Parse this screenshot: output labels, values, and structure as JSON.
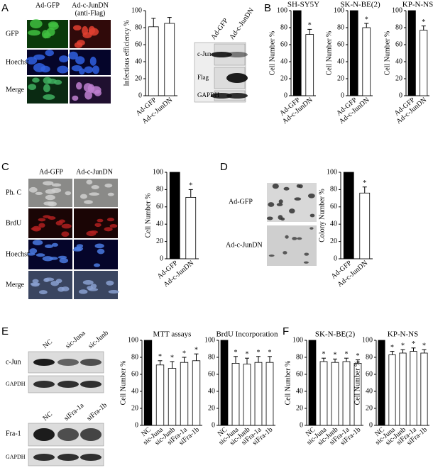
{
  "labels": {
    "panels": [
      "A",
      "B",
      "C",
      "D",
      "E",
      "F"
    ],
    "a_columns": [
      "Ad-GFP",
      "Ad-c-JunDN",
      "(anti-Flag)"
    ],
    "a_rows": [
      "GFP",
      "Hoechst",
      "Merge"
    ],
    "a_blot_columns": [
      "Ad-GFP",
      "Ad-c-JunDN"
    ],
    "a_blot_rows": [
      "c-Jun",
      "Flag",
      "GAPDH"
    ],
    "c_columns": [
      "Ad-GFP",
      "Ad-c-JunDN"
    ],
    "c_rows": [
      "Ph. C",
      "BrdU",
      "Hoechst",
      "Merge"
    ],
    "d_rows": [
      "Ad-GFP",
      "Ad-c-JunDN"
    ],
    "e_blot1_columns": [
      "NC",
      "sic-Juna",
      "sic-Junb"
    ],
    "e_blot1_rows": [
      "c-Jun",
      "GAPDH"
    ],
    "e_blot2_columns": [
      "NC",
      "siFra-1a",
      "siFra-1b"
    ],
    "e_blot2_rows": [
      "Fra-1",
      "GAPDH"
    ]
  },
  "chart_data": [
    {
      "type": "bar",
      "y_label": "Infectious efficiency %",
      "categories": [
        "Ad-GFP",
        "Ad-c-JunDN"
      ],
      "values": [
        81,
        85
      ],
      "errors": [
        10,
        7
      ],
      "colors": [
        "#ffffff",
        "#ffffff"
      ],
      "ylim": [
        0,
        100
      ],
      "yticks": [
        0,
        20,
        40,
        60,
        80,
        100
      ]
    },
    {
      "type": "bar",
      "title": "SH-SY5Y",
      "y_label": "Cell Number %",
      "categories": [
        "Ad-GFP",
        "Ad-c-JunDN"
      ],
      "values": [
        100,
        72
      ],
      "errors": [
        null,
        6
      ],
      "significance": [
        null,
        "*"
      ],
      "colors": [
        "#000000",
        "#ffffff"
      ],
      "ylim": [
        0,
        100
      ],
      "yticks": [
        0,
        20,
        40,
        60,
        80,
        100
      ]
    },
    {
      "type": "bar",
      "title": "SK-N-BE(2)",
      "y_label": "Cell Number %",
      "categories": [
        "Ad-GFP",
        "Ad-c-JunDN"
      ],
      "values": [
        100,
        80
      ],
      "errors": [
        null,
        5
      ],
      "significance": [
        null,
        "*"
      ],
      "colors": [
        "#000000",
        "#ffffff"
      ],
      "ylim": [
        0,
        100
      ],
      "yticks": [
        0,
        20,
        40,
        60,
        80,
        100
      ]
    },
    {
      "type": "bar",
      "title": "KP-N-NS",
      "y_label": "Cell Number %",
      "categories": [
        "Ad-GFP",
        "Ad-c-JunDN"
      ],
      "values": [
        100,
        77
      ],
      "errors": [
        null,
        5
      ],
      "significance": [
        null,
        "*"
      ],
      "colors": [
        "#000000",
        "#ffffff"
      ],
      "ylim": [
        0,
        100
      ],
      "yticks": [
        0,
        20,
        40,
        60,
        80,
        100
      ]
    },
    {
      "type": "bar",
      "y_label": "Cell Number %",
      "categories": [
        "Ad-GFP",
        "Ad-c-JunDN"
      ],
      "values": [
        100,
        71
      ],
      "errors": [
        null,
        9
      ],
      "significance": [
        null,
        "*"
      ],
      "colors": [
        "#000000",
        "#ffffff"
      ],
      "ylim": [
        0,
        100
      ],
      "yticks": [
        0,
        20,
        40,
        60,
        80,
        100
      ]
    },
    {
      "type": "bar",
      "y_label": "Colony Number %",
      "categories": [
        "Ad-GFP",
        "Ad-c-JunDN"
      ],
      "values": [
        100,
        76
      ],
      "errors": [
        null,
        7
      ],
      "significance": [
        null,
        "*"
      ],
      "colors": [
        "#000000",
        "#ffffff"
      ],
      "ylim": [
        0,
        100
      ],
      "yticks": [
        0,
        20,
        40,
        60,
        80,
        100
      ]
    },
    {
      "type": "bar",
      "title": "MTT assays",
      "y_label": "Cell Number %",
      "categories": [
        "NC",
        "sic-Juna",
        "sic-Junb",
        "siFra-1a",
        "siFra-1b"
      ],
      "values": [
        100,
        71,
        67,
        74,
        76
      ],
      "errors": [
        null,
        5,
        8,
        6,
        8
      ],
      "significance": [
        null,
        "*",
        "*",
        "*",
        "*"
      ],
      "colors": [
        "#000000",
        "#ffffff",
        "#ffffff",
        "#ffffff",
        "#ffffff"
      ],
      "ylim": [
        0,
        100
      ],
      "yticks": [
        0,
        20,
        40,
        60,
        80,
        100
      ]
    },
    {
      "type": "bar",
      "title": "BrdU Incorporation",
      "categories": [
        "NC",
        "sic-Juna",
        "sic-Junb",
        "siFra-1a",
        "siFra-1b"
      ],
      "values": [
        100,
        73,
        72,
        74,
        74
      ],
      "errors": [
        null,
        8,
        7,
        7,
        7
      ],
      "significance": [
        null,
        "*",
        "*",
        "*",
        "*"
      ],
      "colors": [
        "#000000",
        "#ffffff",
        "#ffffff",
        "#ffffff",
        "#ffffff"
      ],
      "ylim": [
        0,
        100
      ],
      "yticks": [
        0,
        20,
        40,
        60,
        80,
        100
      ]
    },
    {
      "type": "bar",
      "title": "SK-N-BE(2)",
      "y_label": "Cell Number %",
      "categories": [
        "NC",
        "sic-Juna",
        "sic-Junb",
        "siFra-1a",
        "siFra-1b"
      ],
      "values": [
        100,
        75,
        74,
        75,
        73
      ],
      "errors": [
        null,
        4,
        4,
        4,
        4
      ],
      "significance": [
        null,
        "*",
        "*",
        "*",
        "*"
      ],
      "colors": [
        "#000000",
        "#ffffff",
        "#ffffff",
        "#ffffff",
        "#ffffff"
      ],
      "ylim": [
        0,
        100
      ],
      "yticks": [
        0,
        20,
        40,
        60,
        80,
        100
      ]
    },
    {
      "type": "bar",
      "title": "KP-N-NS",
      "y_label": "Cell Number %",
      "categories": [
        "NC",
        "sic-Juna",
        "sic-Junb",
        "siFra-1a",
        "siFra-1b"
      ],
      "values": [
        100,
        83,
        85,
        87,
        85
      ],
      "errors": [
        null,
        4,
        4,
        4,
        4
      ],
      "significance": [
        null,
        "*",
        "*",
        "*",
        "*"
      ],
      "colors": [
        "#000000",
        "#ffffff",
        "#ffffff",
        "#ffffff",
        "#ffffff"
      ],
      "ylim": [
        0,
        100
      ],
      "yticks": [
        0,
        20,
        40,
        60,
        80,
        100
      ]
    }
  ]
}
